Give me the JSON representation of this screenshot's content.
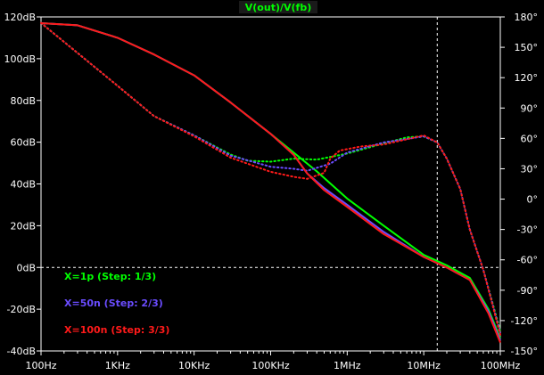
{
  "chart_data": {
    "type": "line",
    "title": "V(out)/V(fb)",
    "xscale": "log",
    "xlim": [
      100,
      100000000
    ],
    "ylim_left": [
      -40,
      120
    ],
    "ylim_right": [
      -150,
      180
    ],
    "x_tick_labels": [
      "100Hz",
      "1KHz",
      "10KHz",
      "100KHz",
      "1MHz",
      "10MHz",
      "100MHz"
    ],
    "y_left_tick_labels": [
      "120dB",
      "100dB",
      "80dB",
      "60dB",
      "40dB",
      "20dB",
      "0dB",
      "-20dB",
      "-40dB"
    ],
    "y_right_tick_labels": [
      "180°",
      "150°",
      "120°",
      "90°",
      "60°",
      "30°",
      "0°",
      "-30°",
      "-60°",
      "-90°",
      "-120°",
      "-150°"
    ],
    "cursor_x": 15000000,
    "colors": {
      "background": "#000000",
      "axis": "#ffffff",
      "title": "#00ff00",
      "cursor": "#ffffff"
    },
    "series": [
      {
        "name": "X=1p  (Step: 1/3)",
        "color": "#00ff00",
        "magnitude": [
          [
            100,
            117
          ],
          [
            300,
            116
          ],
          [
            1000,
            110
          ],
          [
            3000,
            102
          ],
          [
            10000,
            92
          ],
          [
            30000,
            79
          ],
          [
            100000,
            64
          ],
          [
            200000,
            55
          ],
          [
            400000,
            46
          ],
          [
            1000000,
            33
          ],
          [
            3000000,
            20
          ],
          [
            10000000,
            6
          ],
          [
            20000000,
            1
          ],
          [
            40000000,
            -5
          ],
          [
            70000000,
            -20
          ],
          [
            100000000,
            -34
          ]
        ],
        "phase": [
          [
            100,
            174
          ],
          [
            1000,
            112
          ],
          [
            3000,
            82
          ],
          [
            10000,
            63
          ],
          [
            30000,
            44
          ],
          [
            50000,
            38
          ],
          [
            100000,
            37
          ],
          [
            200000,
            40
          ],
          [
            400000,
            39
          ],
          [
            1000000,
            45
          ],
          [
            3000000,
            55
          ],
          [
            6000000,
            61
          ],
          [
            10000000,
            62
          ],
          [
            15000000,
            56
          ],
          [
            20000000,
            40
          ],
          [
            30000000,
            10
          ],
          [
            40000000,
            -30
          ],
          [
            60000000,
            -70
          ],
          [
            100000000,
            -130
          ]
        ]
      },
      {
        "name": "X=50n  (Step: 2/3)",
        "color": "#6a4cff",
        "magnitude": [
          [
            100,
            117
          ],
          [
            300,
            116
          ],
          [
            1000,
            110
          ],
          [
            3000,
            102
          ],
          [
            10000,
            92
          ],
          [
            30000,
            79
          ],
          [
            100000,
            64
          ],
          [
            200000,
            54
          ],
          [
            300000,
            45
          ],
          [
            500000,
            38
          ],
          [
            1000000,
            30
          ],
          [
            3000000,
            17
          ],
          [
            10000000,
            5
          ],
          [
            20000000,
            0
          ],
          [
            40000000,
            -6
          ],
          [
            70000000,
            -21
          ],
          [
            100000000,
            -35
          ]
        ],
        "phase": [
          [
            100,
            174
          ],
          [
            1000,
            112
          ],
          [
            3000,
            82
          ],
          [
            10000,
            63
          ],
          [
            30000,
            43
          ],
          [
            100000,
            32
          ],
          [
            200000,
            30
          ],
          [
            300000,
            28
          ],
          [
            600000,
            35
          ],
          [
            1000000,
            46
          ],
          [
            3000000,
            56
          ],
          [
            10000000,
            62
          ],
          [
            15000000,
            56
          ],
          [
            20000000,
            40
          ],
          [
            30000000,
            10
          ],
          [
            40000000,
            -30
          ],
          [
            60000000,
            -70
          ],
          [
            100000000,
            -132
          ]
        ]
      },
      {
        "name": "X=100n  (Step: 3/3)",
        "color": "#ff1a1a",
        "magnitude": [
          [
            100,
            117
          ],
          [
            300,
            116
          ],
          [
            1000,
            110
          ],
          [
            3000,
            102
          ],
          [
            10000,
            92
          ],
          [
            30000,
            79
          ],
          [
            100000,
            64
          ],
          [
            200000,
            54
          ],
          [
            300000,
            45
          ],
          [
            500000,
            37
          ],
          [
            1000000,
            29
          ],
          [
            3000000,
            16
          ],
          [
            10000000,
            5
          ],
          [
            20000000,
            0
          ],
          [
            40000000,
            -6
          ],
          [
            70000000,
            -22
          ],
          [
            100000000,
            -36
          ]
        ],
        "phase": [
          [
            100,
            174
          ],
          [
            1000,
            112
          ],
          [
            3000,
            82
          ],
          [
            10000,
            62
          ],
          [
            30000,
            41
          ],
          [
            100000,
            27
          ],
          [
            200000,
            22
          ],
          [
            300000,
            20
          ],
          [
            500000,
            26
          ],
          [
            600000,
            40
          ],
          [
            800000,
            48
          ],
          [
            1500000,
            52
          ],
          [
            3000000,
            54
          ],
          [
            10000000,
            63
          ],
          [
            15000000,
            56
          ],
          [
            20000000,
            40
          ],
          [
            30000000,
            10
          ],
          [
            40000000,
            -30
          ],
          [
            60000000,
            -70
          ],
          [
            100000000,
            -134
          ]
        ]
      }
    ]
  }
}
